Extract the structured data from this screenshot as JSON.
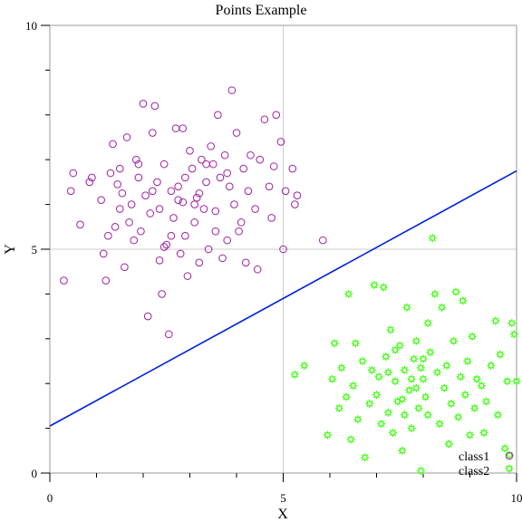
{
  "chart_data": {
    "type": "scatter",
    "title": "Points Example",
    "xlabel": "X",
    "ylabel": "Y",
    "xlim": [
      0,
      10
    ],
    "ylim": [
      0,
      10
    ],
    "x_ticks": [
      0,
      5,
      10
    ],
    "y_ticks": [
      0,
      5,
      10
    ],
    "x_tick_labels": [
      "0",
      "5",
      "10"
    ],
    "y_tick_labels": [
      "0",
      "5",
      "10"
    ],
    "grid": true,
    "legend_position": "bottom-right",
    "series": [
      {
        "name": "class1",
        "marker": "open-circle",
        "color": "#a020a0",
        "points": [
          [
            0.3,
            4.3
          ],
          [
            0.45,
            6.3
          ],
          [
            0.5,
            6.7
          ],
          [
            0.65,
            5.55
          ],
          [
            0.85,
            6.5
          ],
          [
            0.9,
            6.6
          ],
          [
            1.1,
            6.1
          ],
          [
            1.15,
            4.9
          ],
          [
            1.2,
            4.3
          ],
          [
            1.25,
            5.3
          ],
          [
            1.3,
            6.7
          ],
          [
            1.35,
            7.35
          ],
          [
            1.4,
            5.5
          ],
          [
            1.45,
            6.45
          ],
          [
            1.5,
            5.9
          ],
          [
            1.55,
            6.25
          ],
          [
            1.6,
            4.6
          ],
          [
            1.65,
            7.5
          ],
          [
            1.7,
            5.6
          ],
          [
            1.75,
            6.0
          ],
          [
            1.8,
            5.2
          ],
          [
            1.85,
            7.0
          ],
          [
            1.9,
            6.6
          ],
          [
            1.95,
            5.4
          ],
          [
            2.0,
            8.25
          ],
          [
            2.05,
            6.2
          ],
          [
            2.1,
            3.5
          ],
          [
            2.15,
            5.8
          ],
          [
            2.2,
            7.6
          ],
          [
            2.25,
            8.2
          ],
          [
            2.3,
            6.5
          ],
          [
            2.35,
            5.9
          ],
          [
            2.4,
            4.0
          ],
          [
            2.45,
            6.9
          ],
          [
            2.5,
            5.1
          ],
          [
            2.55,
            3.1
          ],
          [
            2.6,
            6.3
          ],
          [
            2.65,
            5.7
          ],
          [
            2.7,
            7.7
          ],
          [
            2.75,
            6.4
          ],
          [
            2.8,
            4.9
          ],
          [
            2.85,
            6.05
          ],
          [
            2.9,
            5.3
          ],
          [
            2.95,
            4.4
          ],
          [
            3.0,
            7.2
          ],
          [
            3.05,
            6.8
          ],
          [
            3.1,
            5.6
          ],
          [
            3.15,
            6.15
          ],
          [
            3.2,
            4.7
          ],
          [
            3.25,
            7.0
          ],
          [
            3.3,
            5.9
          ],
          [
            3.35,
            6.5
          ],
          [
            3.4,
            5.0
          ],
          [
            3.45,
            7.3
          ],
          [
            3.5,
            6.9
          ],
          [
            3.55,
            5.4
          ],
          [
            3.6,
            8.0
          ],
          [
            3.65,
            6.6
          ],
          [
            3.7,
            4.8
          ],
          [
            3.75,
            7.1
          ],
          [
            3.8,
            5.2
          ],
          [
            3.85,
            6.4
          ],
          [
            3.9,
            8.55
          ],
          [
            3.95,
            6.0
          ],
          [
            4.0,
            7.6
          ],
          [
            4.1,
            5.6
          ],
          [
            4.15,
            6.8
          ],
          [
            4.2,
            4.7
          ],
          [
            4.25,
            6.3
          ],
          [
            4.3,
            7.1
          ],
          [
            4.4,
            5.9
          ],
          [
            4.45,
            4.55
          ],
          [
            4.5,
            7.0
          ],
          [
            4.6,
            7.9
          ],
          [
            4.7,
            6.4
          ],
          [
            4.75,
            5.7
          ],
          [
            4.8,
            6.85
          ],
          [
            4.85,
            8.0
          ],
          [
            4.95,
            7.4
          ],
          [
            5.0,
            5.0
          ],
          [
            5.05,
            6.3
          ],
          [
            5.2,
            6.8
          ],
          [
            5.25,
            6.0
          ],
          [
            5.3,
            6.2
          ],
          [
            5.85,
            5.2
          ],
          [
            2.6,
            5.3
          ],
          [
            2.75,
            6.1
          ],
          [
            3.1,
            6.0
          ],
          [
            2.2,
            6.3
          ],
          [
            1.9,
            6.9
          ],
          [
            3.35,
            6.9
          ],
          [
            2.45,
            5.05
          ],
          [
            2.9,
            6.6
          ],
          [
            3.55,
            5.85
          ],
          [
            2.35,
            4.75
          ],
          [
            1.5,
            6.8
          ],
          [
            3.8,
            6.7
          ],
          [
            2.85,
            7.7
          ],
          [
            4.05,
            5.4
          ],
          [
            3.2,
            6.25
          ]
        ]
      },
      {
        "name": "class2",
        "marker": "green-gear",
        "color": "#33ff00",
        "points": [
          [
            5.25,
            2.2
          ],
          [
            5.45,
            2.4
          ],
          [
            5.95,
            0.85
          ],
          [
            6.05,
            2.1
          ],
          [
            6.1,
            2.9
          ],
          [
            6.2,
            1.45
          ],
          [
            6.25,
            2.35
          ],
          [
            6.35,
            1.7
          ],
          [
            6.4,
            4.0
          ],
          [
            6.45,
            0.75
          ],
          [
            6.5,
            1.95
          ],
          [
            6.55,
            2.9
          ],
          [
            6.6,
            1.2
          ],
          [
            6.7,
            2.5
          ],
          [
            6.75,
            0.35
          ],
          [
            6.85,
            1.55
          ],
          [
            6.9,
            2.3
          ],
          [
            6.95,
            4.2
          ],
          [
            7.0,
            1.75
          ],
          [
            7.05,
            2.15
          ],
          [
            7.1,
            1.1
          ],
          [
            7.15,
            4.15
          ],
          [
            7.2,
            2.6
          ],
          [
            7.25,
            1.35
          ],
          [
            7.3,
            3.2
          ],
          [
            7.35,
            0.9
          ],
          [
            7.4,
            2.05
          ],
          [
            7.45,
            1.6
          ],
          [
            7.5,
            2.85
          ],
          [
            7.55,
            0.5
          ],
          [
            7.6,
            2.3
          ],
          [
            7.65,
            3.7
          ],
          [
            7.7,
            1.85
          ],
          [
            7.75,
            1.0
          ],
          [
            7.8,
            2.55
          ],
          [
            7.85,
            2.95
          ],
          [
            7.9,
            1.45
          ],
          [
            7.95,
            0.05
          ],
          [
            8.0,
            2.1
          ],
          [
            8.05,
            1.7
          ],
          [
            8.1,
            3.35
          ],
          [
            8.15,
            2.7
          ],
          [
            8.2,
            5.25
          ],
          [
            8.25,
            4.0
          ],
          [
            8.3,
            2.25
          ],
          [
            8.35,
            1.1
          ],
          [
            8.4,
            3.7
          ],
          [
            8.45,
            1.9
          ],
          [
            8.5,
            2.4
          ],
          [
            8.55,
            0.65
          ],
          [
            8.6,
            1.55
          ],
          [
            8.65,
            2.95
          ],
          [
            8.7,
            4.05
          ],
          [
            8.75,
            1.25
          ],
          [
            8.8,
            2.15
          ],
          [
            8.85,
            3.85
          ],
          [
            8.9,
            1.75
          ],
          [
            8.95,
            2.5
          ],
          [
            9.0,
            0.85
          ],
          [
            9.05,
            3.05
          ],
          [
            9.1,
            1.45
          ],
          [
            9.15,
            2.1
          ],
          [
            9.25,
            1.95
          ],
          [
            9.3,
            0.9
          ],
          [
            9.35,
            1.6
          ],
          [
            9.45,
            2.4
          ],
          [
            9.55,
            3.4
          ],
          [
            9.6,
            1.3
          ],
          [
            9.65,
            2.65
          ],
          [
            9.75,
            0.55
          ],
          [
            9.8,
            2.05
          ],
          [
            9.85,
            0.4
          ],
          [
            9.9,
            3.35
          ],
          [
            9.95,
            3.1
          ],
          [
            10.0,
            2.05
          ],
          [
            7.25,
            2.25
          ],
          [
            7.4,
            2.75
          ],
          [
            7.6,
            1.3
          ],
          [
            7.75,
            2.1
          ],
          [
            8.0,
            2.55
          ],
          [
            7.55,
            1.65
          ],
          [
            7.85,
            1.9
          ],
          [
            8.1,
            1.3
          ],
          [
            7.95,
            2.35
          ]
        ]
      }
    ],
    "fit_line": {
      "color": "#0022dd",
      "x": [
        0,
        10
      ],
      "y": [
        1.05,
        6.75
      ]
    }
  }
}
